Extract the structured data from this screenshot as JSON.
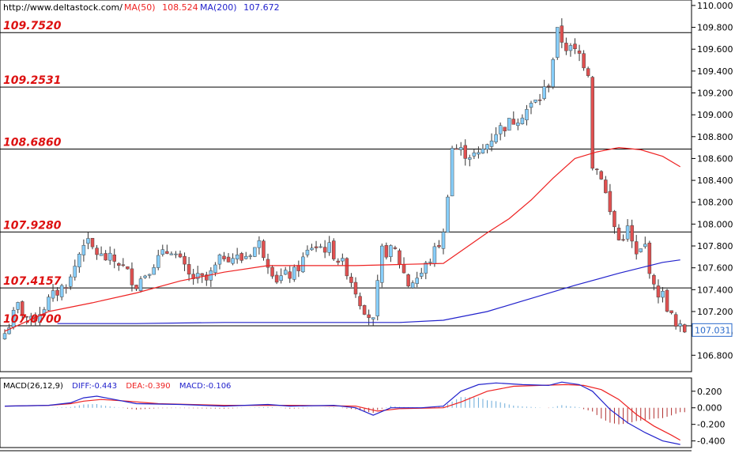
{
  "header": {
    "url": "http://www.deltastock.com/",
    "ma50_label": "MA(50)",
    "ma50_value": "108.524",
    "ma200_label": "MA(200)",
    "ma200_value": "107.672"
  },
  "colors": {
    "ma50": "#ee2222",
    "ma200": "#2222cc",
    "up_candle": "#87cefa",
    "down_candle": "#e05050",
    "level_text": "#dd1111",
    "macd_diff": "#2222cc",
    "macd_dea": "#ee2222"
  },
  "chart_data": [
    {
      "type": "candlestick",
      "ylim": [
        106.65,
        110.05
      ],
      "y_ticks": [
        "110.000",
        "109.800",
        "109.600",
        "109.400",
        "109.200",
        "109.000",
        "108.800",
        "108.600",
        "108.400",
        "108.200",
        "108.000",
        "107.800",
        "107.600",
        "107.400",
        "107.200",
        "107.000",
        "106.800"
      ],
      "current_price": "107.031",
      "levels": [
        {
          "label": "109.7520",
          "value": 109.752
        },
        {
          "label": "109.2531",
          "value": 109.2531
        },
        {
          "label": "108.6860",
          "value": 108.686
        },
        {
          "label": "107.9280",
          "value": 107.928
        },
        {
          "label": "107.4157",
          "value": 107.4157
        },
        {
          "label": "107.0700",
          "value": 107.07
        }
      ],
      "anchors": [
        [
          0,
          107.0
        ],
        [
          3,
          107.25
        ],
        [
          6,
          107.1
        ],
        [
          10,
          107.3
        ],
        [
          15,
          107.5
        ],
        [
          18,
          107.85
        ],
        [
          22,
          107.7
        ],
        [
          26,
          107.65
        ],
        [
          30,
          107.45
        ],
        [
          34,
          107.65
        ],
        [
          38,
          107.78
        ],
        [
          42,
          107.52
        ],
        [
          46,
          107.48
        ],
        [
          50,
          107.72
        ],
        [
          54,
          107.68
        ],
        [
          58,
          107.82
        ],
        [
          62,
          107.5
        ],
        [
          66,
          107.55
        ],
        [
          70,
          107.8
        ],
        [
          74,
          107.78
        ],
        [
          78,
          107.58
        ],
        [
          81,
          107.3
        ],
        [
          84,
          107.1
        ],
        [
          86,
          107.75
        ],
        [
          89,
          107.75
        ],
        [
          92,
          107.45
        ],
        [
          95,
          107.55
        ],
        [
          98,
          107.75
        ],
        [
          100,
          107.9
        ],
        [
          102,
          108.7
        ],
        [
          105,
          108.65
        ],
        [
          108,
          108.62
        ],
        [
          112,
          108.85
        ],
        [
          116,
          108.95
        ],
        [
          119,
          109.05
        ],
        [
          122,
          109.15
        ],
        [
          124,
          109.3
        ],
        [
          126,
          109.75
        ],
        [
          128,
          109.62
        ],
        [
          131,
          109.55
        ],
        [
          133,
          109.4
        ],
        [
          134,
          108.55
        ],
        [
          136,
          108.45
        ],
        [
          138,
          108.1
        ],
        [
          140,
          107.85
        ],
        [
          142,
          107.95
        ],
        [
          144,
          107.7
        ],
        [
          146,
          107.8
        ],
        [
          148,
          107.4
        ],
        [
          150,
          107.35
        ],
        [
          153,
          107.05
        ],
        [
          155,
          107.03
        ]
      ],
      "ma50": [
        [
          0,
          107.02
        ],
        [
          10,
          107.2
        ],
        [
          20,
          107.28
        ],
        [
          30,
          107.37
        ],
        [
          40,
          107.48
        ],
        [
          50,
          107.56
        ],
        [
          60,
          107.62
        ],
        [
          70,
          107.62
        ],
        [
          80,
          107.62
        ],
        [
          90,
          107.63
        ],
        [
          100,
          107.64
        ],
        [
          105,
          107.78
        ],
        [
          110,
          107.92
        ],
        [
          115,
          108.05
        ],
        [
          120,
          108.22
        ],
        [
          125,
          108.42
        ],
        [
          130,
          108.6
        ],
        [
          135,
          108.66
        ],
        [
          140,
          108.7
        ],
        [
          145,
          108.68
        ],
        [
          150,
          108.62
        ],
        [
          154,
          108.524
        ]
      ],
      "ma200": [
        [
          12,
          107.09
        ],
        [
          30,
          107.09
        ],
        [
          50,
          107.1
        ],
        [
          70,
          107.1
        ],
        [
          90,
          107.1
        ],
        [
          100,
          107.12
        ],
        [
          110,
          107.2
        ],
        [
          120,
          107.32
        ],
        [
          130,
          107.44
        ],
        [
          140,
          107.55
        ],
        [
          150,
          107.65
        ],
        [
          154,
          107.672
        ]
      ]
    },
    {
      "type": "macd",
      "title": "MACD(26,12,9)",
      "diff_label": "DIFF:",
      "diff_value": "-0.443",
      "dea_label": "DEA:",
      "dea_value": "-0.390",
      "macd_label": "MACD:",
      "macd_value": "-0.106",
      "ylim": [
        -0.48,
        0.36
      ],
      "y_ticks": [
        "0.200",
        "0.000",
        "-0.200",
        "-0.400"
      ],
      "diff": [
        [
          0,
          0.02
        ],
        [
          10,
          0.03
        ],
        [
          15,
          0.06
        ],
        [
          18,
          0.12
        ],
        [
          21,
          0.14
        ],
        [
          25,
          0.1
        ],
        [
          30,
          0.05
        ],
        [
          40,
          0.04
        ],
        [
          50,
          0.02
        ],
        [
          60,
          0.04
        ],
        [
          65,
          0.02
        ],
        [
          75,
          0.03
        ],
        [
          80,
          0.0
        ],
        [
          84,
          -0.09
        ],
        [
          88,
          0.0
        ],
        [
          95,
          0.0
        ],
        [
          100,
          0.02
        ],
        [
          104,
          0.2
        ],
        [
          108,
          0.28
        ],
        [
          112,
          0.3
        ],
        [
          118,
          0.28
        ],
        [
          124,
          0.27
        ],
        [
          127,
          0.31
        ],
        [
          131,
          0.28
        ],
        [
          134,
          0.2
        ],
        [
          138,
          -0.02
        ],
        [
          142,
          -0.18
        ],
        [
          146,
          -0.3
        ],
        [
          150,
          -0.4
        ],
        [
          154,
          -0.443
        ]
      ],
      "dea": [
        [
          0,
          0.02
        ],
        [
          10,
          0.03
        ],
        [
          15,
          0.05
        ],
        [
          18,
          0.08
        ],
        [
          22,
          0.1
        ],
        [
          28,
          0.08
        ],
        [
          35,
          0.05
        ],
        [
          50,
          0.03
        ],
        [
          65,
          0.03
        ],
        [
          80,
          0.02
        ],
        [
          85,
          -0.04
        ],
        [
          90,
          -0.01
        ],
        [
          100,
          0.0
        ],
        [
          104,
          0.07
        ],
        [
          110,
          0.2
        ],
        [
          116,
          0.26
        ],
        [
          122,
          0.27
        ],
        [
          128,
          0.28
        ],
        [
          132,
          0.27
        ],
        [
          136,
          0.22
        ],
        [
          140,
          0.1
        ],
        [
          144,
          -0.08
        ],
        [
          148,
          -0.22
        ],
        [
          152,
          -0.33
        ],
        [
          154,
          -0.39
        ]
      ]
    }
  ]
}
